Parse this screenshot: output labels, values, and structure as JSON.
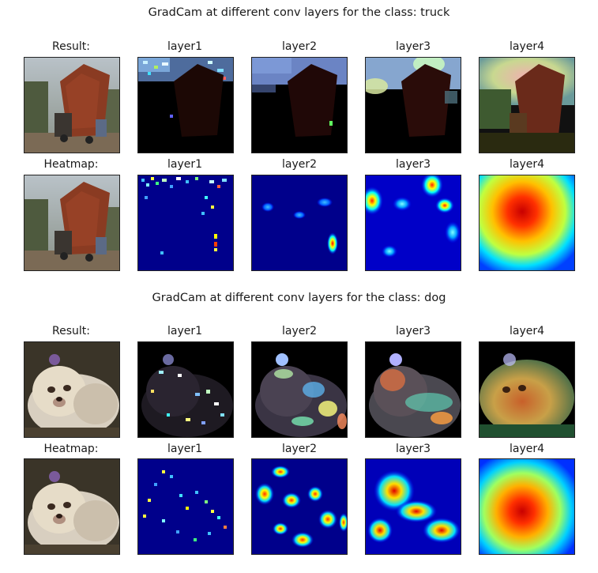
{
  "sections": [
    {
      "title": "GradCam at different conv layers for the class: truck",
      "rows": [
        {
          "row_label": "Result:",
          "layer_labels": [
            "layer1",
            "layer2",
            "layer3",
            "layer4"
          ]
        },
        {
          "row_label": "Heatmap:",
          "layer_labels": [
            "layer1",
            "layer2",
            "layer3",
            "layer4"
          ]
        }
      ]
    },
    {
      "title": "GradCam at different conv layers for the class: dog",
      "rows": [
        {
          "row_label": "Result:",
          "layer_labels": [
            "layer1",
            "layer2",
            "layer3",
            "layer4"
          ]
        },
        {
          "row_label": "Heatmap:",
          "layer_labels": [
            "layer1",
            "layer2",
            "layer3",
            "layer4"
          ]
        }
      ]
    }
  ],
  "colors": {
    "heatmap_background": "#00008b",
    "heatmap_low": "#0000ff",
    "heatmap_high": "#ff0000",
    "frame": "#222222"
  }
}
